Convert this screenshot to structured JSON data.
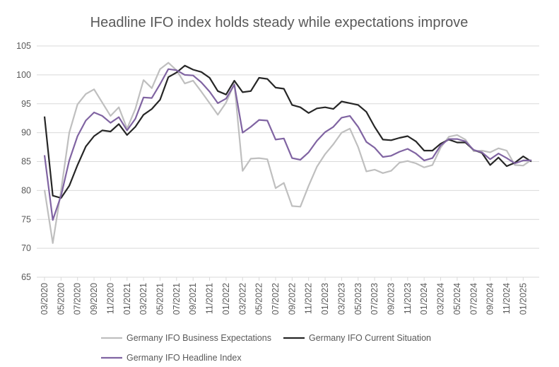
{
  "chart_data": {
    "type": "line",
    "title": "Headline IFO index holds steady while expectations improve",
    "xlabel": "",
    "ylabel": "",
    "ylim": [
      65,
      105
    ],
    "yticks": [
      "65",
      "70",
      "75",
      "80",
      "85",
      "90",
      "95",
      "100",
      "105"
    ],
    "grid": "horizontal",
    "legend_position": "bottom",
    "x": [
      "03/2020",
      "04/2020",
      "05/2020",
      "06/2020",
      "07/2020",
      "08/2020",
      "09/2020",
      "10/2020",
      "11/2020",
      "12/2020",
      "01/2021",
      "02/2021",
      "03/2021",
      "04/2021",
      "05/2021",
      "06/2021",
      "07/2021",
      "08/2021",
      "09/2021",
      "10/2021",
      "11/2021",
      "12/2021",
      "01/2022",
      "02/2022",
      "03/2022",
      "04/2022",
      "05/2022",
      "06/2022",
      "07/2022",
      "08/2022",
      "09/2022",
      "10/2022",
      "11/2022",
      "12/2022",
      "01/2023",
      "02/2023",
      "03/2023",
      "04/2023",
      "05/2023",
      "06/2023",
      "07/2023",
      "08/2023",
      "09/2023",
      "10/2023",
      "11/2023",
      "12/2023",
      "01/2024",
      "02/2024",
      "03/2024",
      "04/2024",
      "05/2024",
      "06/2024",
      "07/2024",
      "08/2024",
      "09/2024",
      "10/2024",
      "11/2024",
      "12/2024",
      "01/2025",
      "02/2025"
    ],
    "xtick_labels": [
      "03/2020",
      "05/2020",
      "07/2020",
      "09/2020",
      "11/2020",
      "01/2021",
      "03/2021",
      "05/2021",
      "07/2021",
      "09/2021",
      "11/2021",
      "01/2022",
      "03/2022",
      "05/2022",
      "07/2022",
      "09/2022",
      "11/2022",
      "01/2023",
      "03/2023",
      "05/2023",
      "07/2023",
      "09/2023",
      "11/2023",
      "01/2024",
      "03/2024",
      "05/2024",
      "07/2024",
      "09/2024",
      "11/2024",
      "01/2025"
    ],
    "series": [
      {
        "name": "Germany IFO Business Expectations",
        "color": "#bfbfbf",
        "values": [
          80.1,
          70.9,
          80.0,
          90.0,
          94.9,
          96.7,
          97.5,
          95.2,
          92.9,
          94.4,
          90.7,
          94.1,
          99.1,
          97.7,
          101.0,
          102.1,
          100.8,
          98.5,
          99.0,
          97.1,
          95.1,
          93.1,
          95.2,
          98.5,
          83.4,
          85.5,
          85.6,
          85.4,
          80.4,
          81.3,
          77.3,
          77.2,
          80.8,
          84.1,
          86.3,
          88.0,
          90.0,
          90.7,
          87.5,
          83.3,
          83.6,
          83.0,
          83.4,
          84.8,
          85.1,
          84.7,
          84.0,
          84.4,
          87.4,
          89.3,
          89.6,
          88.8,
          86.8,
          86.9,
          86.6,
          87.3,
          86.9,
          84.4,
          84.3,
          85.3
        ]
      },
      {
        "name": "Germany IFO Current Situation",
        "color": "#262626",
        "values": [
          92.8,
          79.1,
          78.7,
          80.8,
          84.4,
          87.6,
          89.4,
          90.4,
          90.2,
          91.5,
          89.6,
          91.0,
          93.1,
          94.1,
          95.7,
          99.6,
          100.4,
          101.6,
          100.9,
          100.5,
          99.5,
          97.2,
          96.6,
          99.0,
          97.0,
          97.2,
          99.5,
          99.3,
          97.8,
          97.6,
          94.8,
          94.4,
          93.4,
          94.2,
          94.4,
          94.1,
          95.4,
          95.1,
          94.8,
          93.6,
          91.0,
          88.8,
          88.7,
          89.1,
          89.4,
          88.5,
          86.9,
          86.9,
          88.1,
          88.8,
          88.3,
          88.3,
          87.0,
          86.5,
          84.4,
          85.7,
          84.2,
          84.8,
          85.9,
          85.0
        ]
      },
      {
        "name": "Germany IFO Headline Index",
        "color": "#8064a2",
        "values": [
          86.1,
          74.9,
          79.1,
          85.2,
          89.4,
          92.1,
          93.5,
          92.9,
          91.7,
          92.7,
          90.4,
          92.4,
          96.1,
          96.0,
          98.4,
          101.0,
          100.8,
          100.0,
          99.9,
          98.7,
          97.1,
          95.1,
          95.9,
          98.3,
          90.0,
          91.0,
          92.2,
          92.1,
          88.8,
          89.0,
          85.6,
          85.3,
          86.6,
          88.6,
          90.1,
          91.0,
          92.6,
          92.9,
          91.0,
          88.4,
          87.4,
          85.8,
          86.0,
          86.7,
          87.2,
          86.4,
          85.2,
          85.6,
          87.8,
          88.9,
          88.9,
          88.5,
          87.0,
          86.6,
          85.4,
          86.4,
          85.6,
          84.7,
          85.2,
          85.2
        ]
      }
    ]
  }
}
